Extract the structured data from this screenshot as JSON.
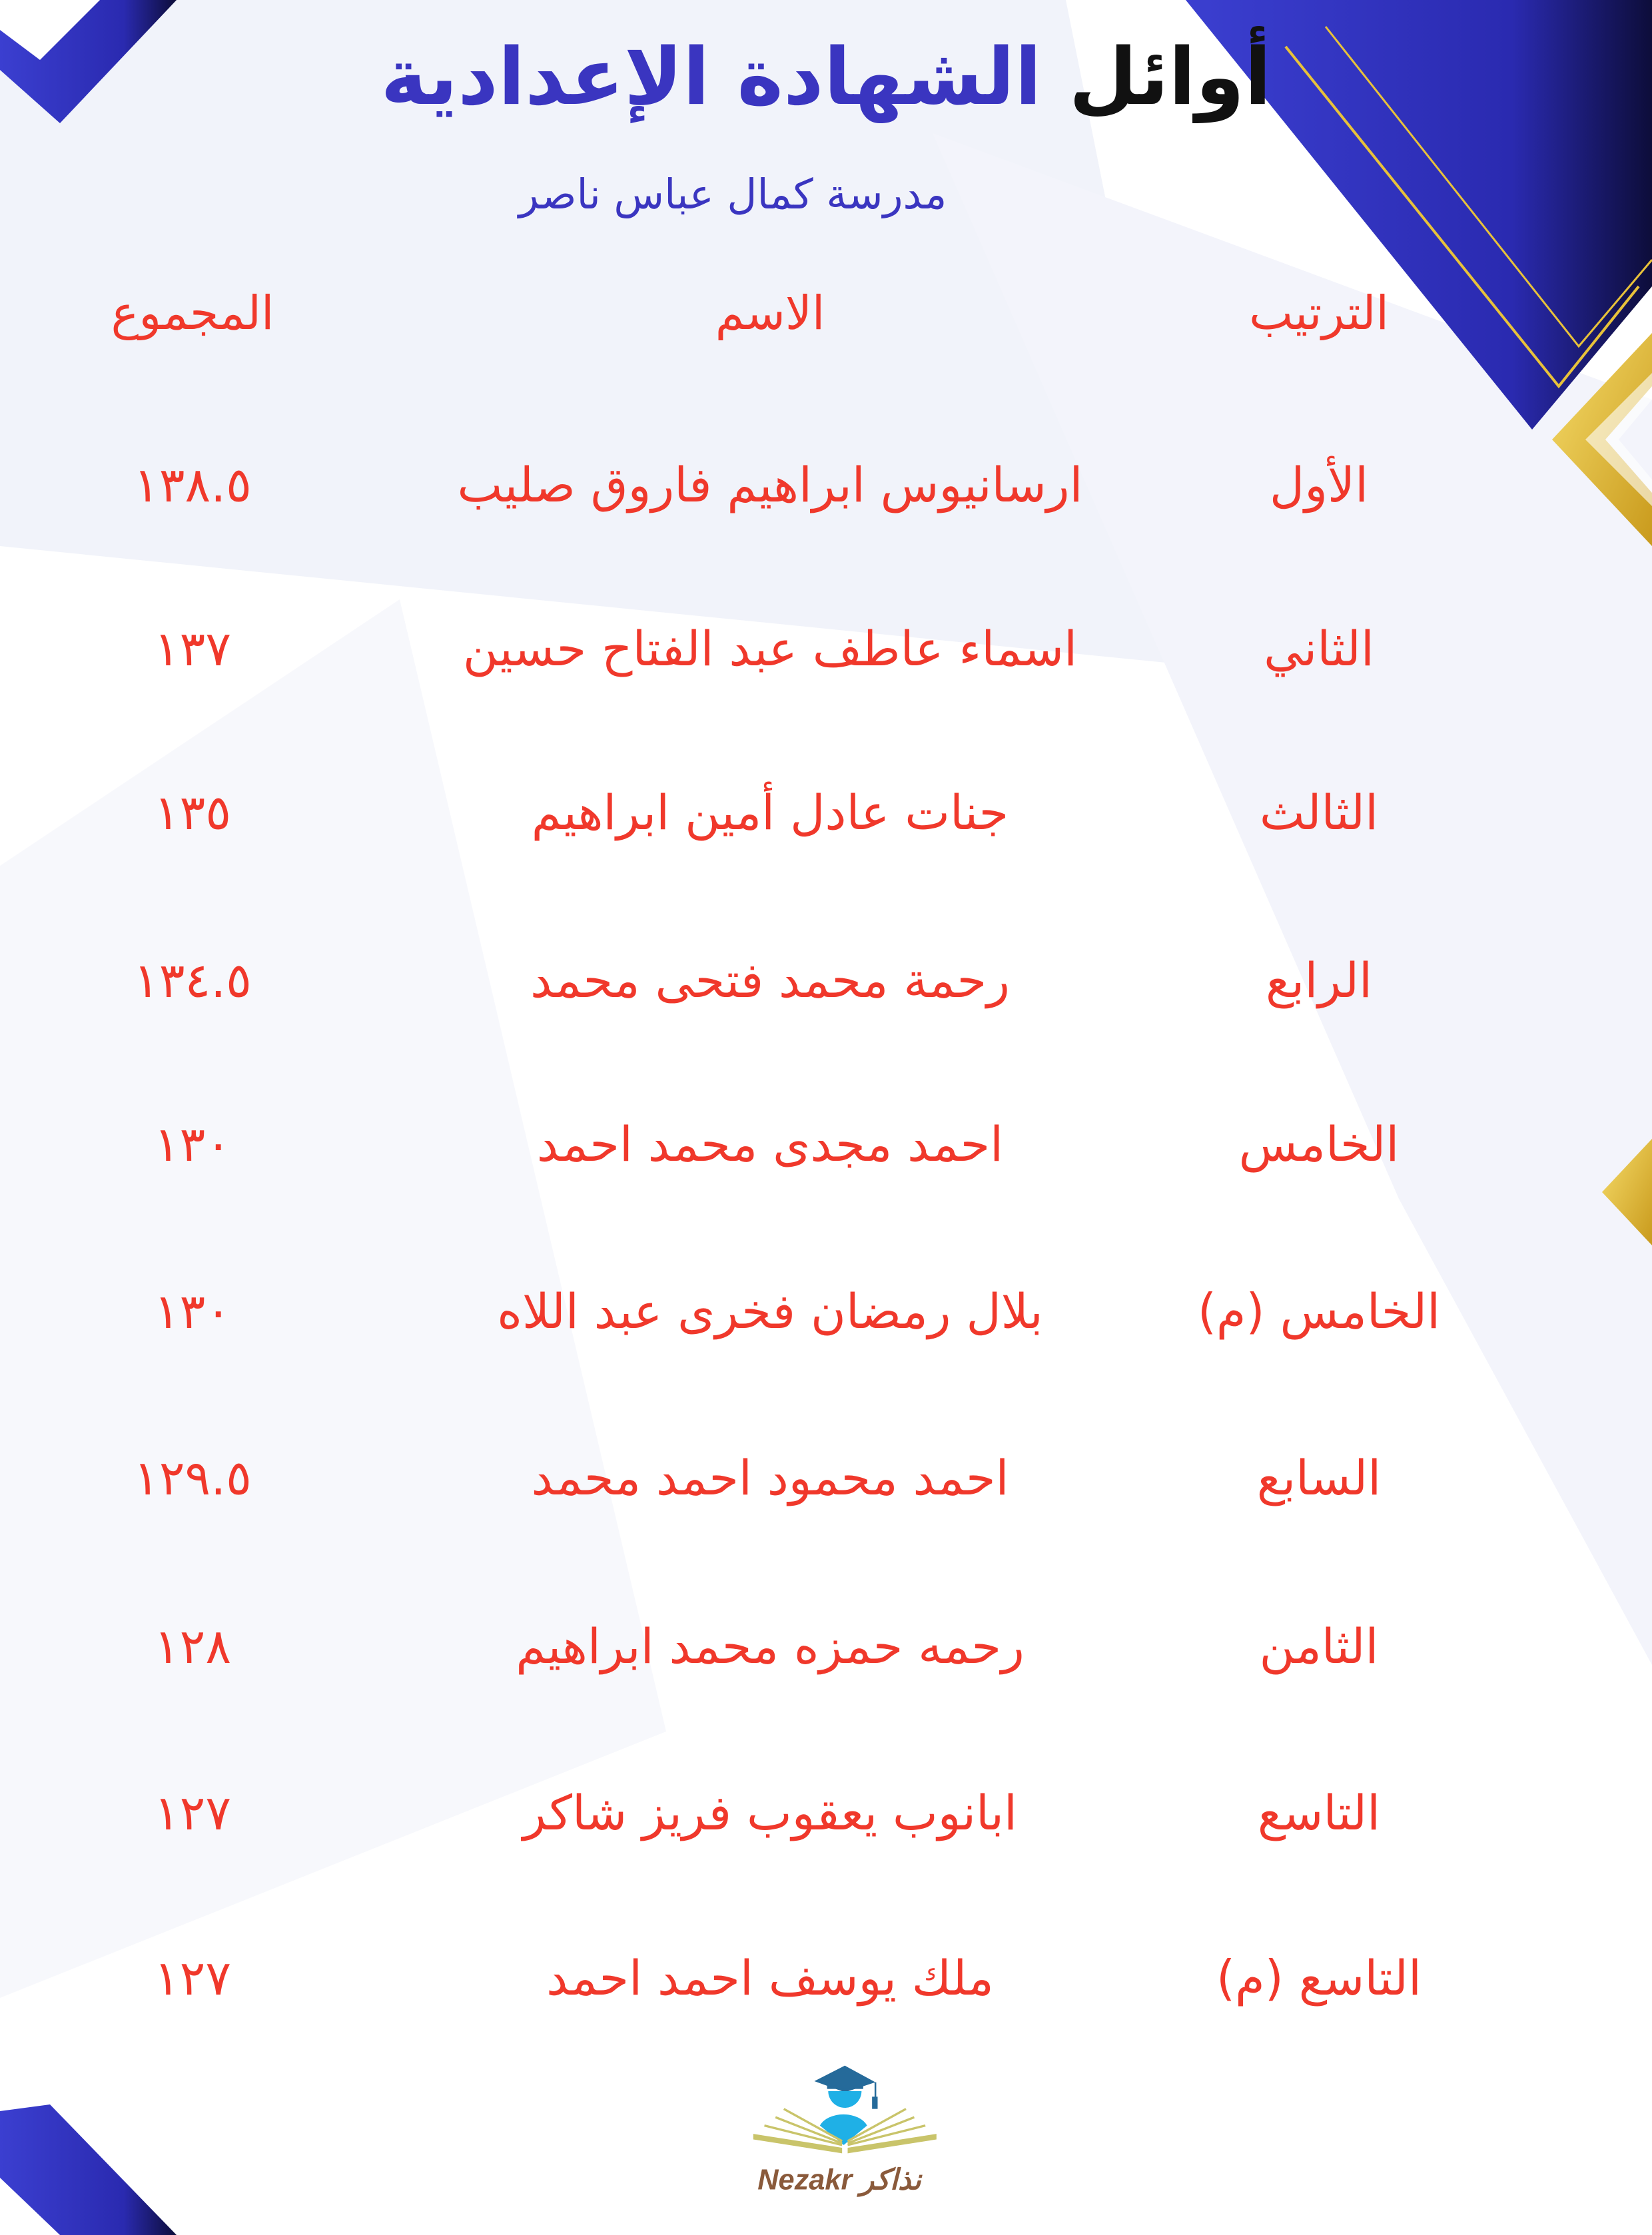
{
  "header": {
    "title_part1": "أوائل",
    "title_part2": "الشهادة الإعدادية",
    "school": "مدرسة كمال عباس ناصر"
  },
  "table": {
    "columns": {
      "rank": "الترتيب",
      "name": "الاسم",
      "total": "المجموع"
    },
    "rows": [
      {
        "rank": "الأول",
        "name": "ارسانيوس ابراهيم فاروق صليب",
        "total": "١٣٨.٥"
      },
      {
        "rank": "الثاني",
        "name": "اسماء عاطف عبد الفتاح حسين",
        "total": "١٣٧"
      },
      {
        "rank": "الثالث",
        "name": "جنات عادل أمين ابراهيم",
        "total": "١٣٥"
      },
      {
        "rank": "الرابع",
        "name": "رحمة محمد فتحى محمد",
        "total": "١٣٤.٥"
      },
      {
        "rank": "الخامس",
        "name": "احمد مجدى محمد احمد",
        "total": "١٣٠"
      },
      {
        "rank": "الخامس (م)",
        "name": "بلال رمضان فخرى عبد اللاه",
        "total": "١٣٠"
      },
      {
        "rank": "السابع",
        "name": "احمد محمود احمد محمد",
        "total": "١٢٩.٥"
      },
      {
        "rank": "الثامن",
        "name": "رحمه حمزه محمد ابراهيم",
        "total": "١٢٨"
      },
      {
        "rank": "التاسع",
        "name": "ابانوب يعقوب فريز شاكر",
        "total": "١٢٧"
      },
      {
        "rank": "التاسع (م)",
        "name": "ملك يوسف احمد احمد",
        "total": "١٢٧"
      }
    ]
  },
  "logo": {
    "text_latin": "Nezakr",
    "text_arabic": "نذاكر",
    "icon": "graduate-book-icon"
  },
  "colors": {
    "title_blue": "#3a35c0",
    "text_red": "#f0382b",
    "decor_blue": "#2f2fb8",
    "decor_gold": "#e8c23a"
  }
}
